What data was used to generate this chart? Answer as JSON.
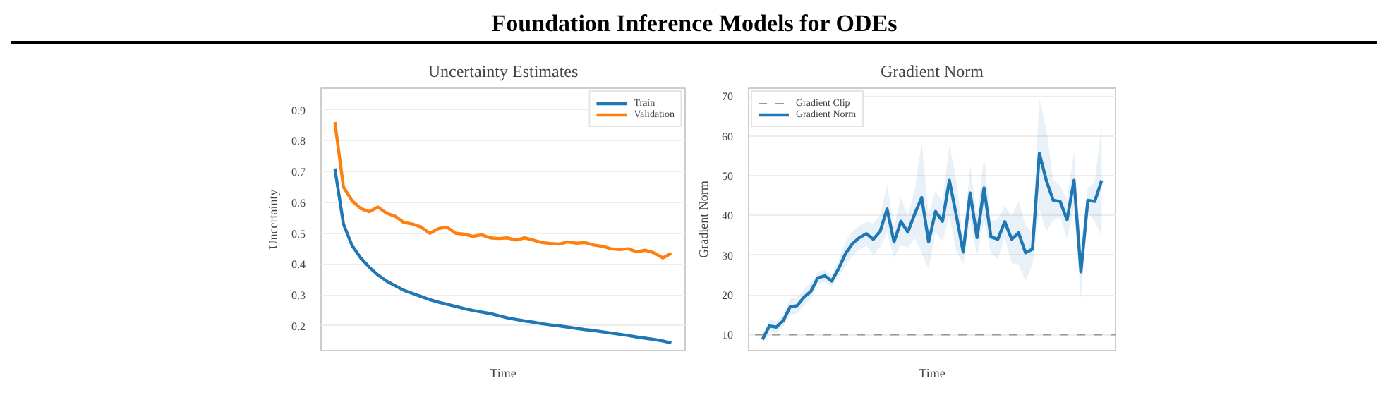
{
  "chart_data": [
    {
      "type": "line",
      "title": "Uncertainty Estimates",
      "xlabel": "Time",
      "ylabel": "Uncertainty",
      "annotations": [
        "Foundation Inference Models for ODEs"
      ],
      "categories": [
        null,
        null,
        null,
        null,
        null,
        null,
        null,
        null,
        null,
        null,
        null,
        null,
        null,
        null,
        null,
        null,
        null,
        null,
        null,
        null,
        null,
        null,
        null,
        null,
        null,
        null,
        null,
        null,
        null,
        null,
        null,
        null,
        null,
        null,
        null,
        null,
        null,
        null,
        null,
        null
      ],
      "series": [
        {
          "name": "Train",
          "color": "#1f77b4",
          "values": [
            0.71,
            0.53,
            0.46,
            0.42,
            0.39,
            0.365,
            0.345,
            0.33,
            0.315,
            0.305,
            0.295,
            0.285,
            0.277,
            0.27,
            0.263,
            0.256,
            0.25,
            0.245,
            0.24,
            0.233,
            0.226,
            0.221,
            0.216,
            0.212,
            0.207,
            0.203,
            0.2,
            0.196,
            0.192,
            0.188,
            0.185,
            0.181,
            0.177,
            0.173,
            0.169,
            0.164,
            0.16,
            0.156,
            0.151,
            0.145
          ]
        },
        {
          "name": "Validation",
          "color": "#ff7f0e",
          "values": [
            0.86,
            0.65,
            0.605,
            0.58,
            0.57,
            0.585,
            0.565,
            0.555,
            0.535,
            0.53,
            0.52,
            0.5,
            0.515,
            0.52,
            0.5,
            0.497,
            0.49,
            0.495,
            0.485,
            0.483,
            0.485,
            0.478,
            0.485,
            0.478,
            0.47,
            0.467,
            0.465,
            0.472,
            0.468,
            0.47,
            0.462,
            0.458,
            0.45,
            0.447,
            0.45,
            0.44,
            0.445,
            0.437,
            0.42,
            0.435
          ]
        }
      ],
      "ylim": [
        0.12,
        0.97
      ],
      "yticks": [
        0.2,
        0.3,
        0.4,
        0.5,
        0.6,
        0.7,
        0.8,
        0.9
      ],
      "grid": "y",
      "legend": "top right",
      "tick_labels": "y"
    },
    {
      "type": "line",
      "title": "Gradient Norm",
      "xlabel": "Time",
      "ylabel": "Gradient Norm",
      "categories": [
        null,
        null,
        null,
        null,
        null,
        null,
        null,
        null,
        null,
        null,
        null,
        null,
        null,
        null,
        null,
        null,
        null,
        null,
        null,
        null,
        null,
        null,
        null,
        null,
        null,
        null,
        null,
        null,
        null,
        null,
        null,
        null,
        null,
        null,
        null,
        null,
        null,
        null,
        null,
        null,
        null,
        null,
        null,
        null,
        null,
        null,
        null,
        null,
        null,
        null
      ],
      "series": [
        {
          "name": "Gradient Norm",
          "color": "#1f77b4",
          "values": [
            8.8,
            12.2,
            11.9,
            13.5,
            17.0,
            17.3,
            19.4,
            20.9,
            24.3,
            24.8,
            23.5,
            26.6,
            30.4,
            32.9,
            34.4,
            35.4,
            34.0,
            36.0,
            41.6,
            33.3,
            38.5,
            35.8,
            40.4,
            44.5,
            33.3,
            41.0,
            38.5,
            48.8,
            40.0,
            30.8,
            45.6,
            34.4,
            46.9,
            34.6,
            34.0,
            38.4,
            34.0,
            35.6,
            30.6,
            31.5,
            55.6,
            48.8,
            43.8,
            43.5,
            38.9,
            48.8,
            25.8,
            43.8,
            43.5,
            48.8
          ],
          "lower": [
            7.8,
            10.7,
            10.4,
            12,
            15,
            15.3,
            17.4,
            18.9,
            22.8,
            23.3,
            22,
            24.6,
            27.4,
            29.9,
            31.4,
            32.4,
            30,
            32,
            35.6,
            29.3,
            32.5,
            31.8,
            34.4,
            30.5,
            26.3,
            36,
            33.5,
            39.8,
            31,
            27.8,
            38.6,
            29.4,
            38.9,
            30.6,
            29,
            34.4,
            28,
            27.6,
            23.6,
            27.5,
            41.6,
            35.8,
            38.8,
            39.5,
            33.9,
            41.8,
            18.8,
            40.8,
            38.5,
            34.8
          ],
          "upper": [
            9.8,
            13.7,
            13.4,
            15,
            19,
            19.3,
            21.4,
            22.9,
            25.8,
            26.3,
            25,
            28.6,
            33.4,
            35.9,
            37.4,
            38.4,
            38,
            40,
            47.6,
            37.3,
            44.5,
            39.8,
            46.4,
            58.5,
            40.3,
            46,
            43.5,
            57.8,
            49,
            33.8,
            52.6,
            39.4,
            54.9,
            38.6,
            39,
            42.4,
            40,
            43.6,
            37.6,
            35.5,
            69.6,
            61.8,
            48.8,
            47.5,
            43.9,
            55.8,
            32.8,
            46.8,
            48.5,
            62.8
          ]
        }
      ],
      "ref_lines": [
        {
          "axis": "y",
          "value": 10,
          "label": "Gradient Clip",
          "color": "#999999",
          "line_style": "dashed"
        }
      ],
      "ylim": [
        6,
        72
      ],
      "yticks": [
        10,
        20,
        30,
        40,
        50,
        60,
        70
      ],
      "grid": "y",
      "legend": "top left",
      "tick_labels": "y"
    }
  ]
}
